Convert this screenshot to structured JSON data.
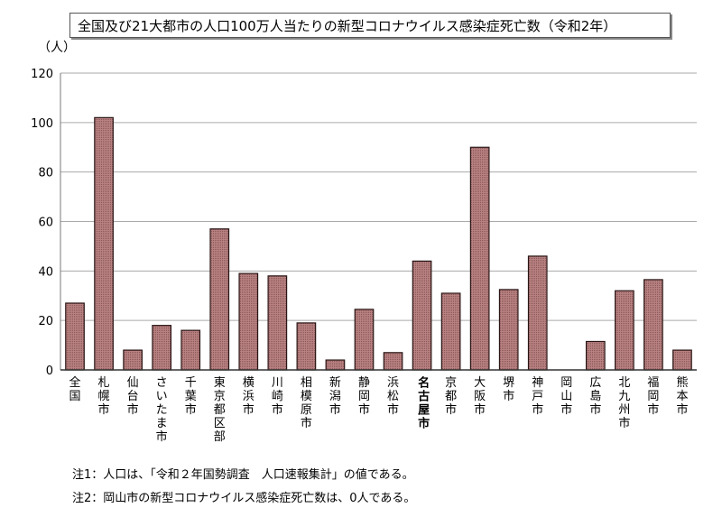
{
  "chart_data": {
    "type": "bar",
    "title": "全国及び21大都市の人口100万人当たりの新型コロナウイルス感染症死亡数（令和2年）",
    "ylabel": "（人）",
    "ylim": [
      0,
      120
    ],
    "yticks": [
      0,
      20,
      40,
      60,
      80,
      100,
      120
    ],
    "grid": true,
    "bar_color": "#b88080",
    "highlight_category": "名古屋市",
    "categories": [
      "全国",
      "札幌市",
      "仙台市",
      "さいたま市",
      "千葉市",
      "東京都区部",
      "横浜市",
      "川崎市",
      "相模原市",
      "新潟市",
      "静岡市",
      "浜松市",
      "名古屋市",
      "京都市",
      "大阪市",
      "堺市",
      "神戸市",
      "岡山市",
      "広島市",
      "北九州市",
      "福岡市",
      "熊本市"
    ],
    "values": [
      27,
      102,
      8,
      18,
      16,
      57,
      39,
      38,
      19,
      4,
      24.5,
      7,
      44,
      31,
      90,
      32.5,
      46,
      0,
      11.5,
      32,
      36.5,
      8
    ]
  },
  "notes": [
    "注1：人口は、「令和２年国勢調査　人口速報集計」の値である。",
    "注2：岡山市の新型コロナウイルス感染症死亡数は、0人である。"
  ]
}
